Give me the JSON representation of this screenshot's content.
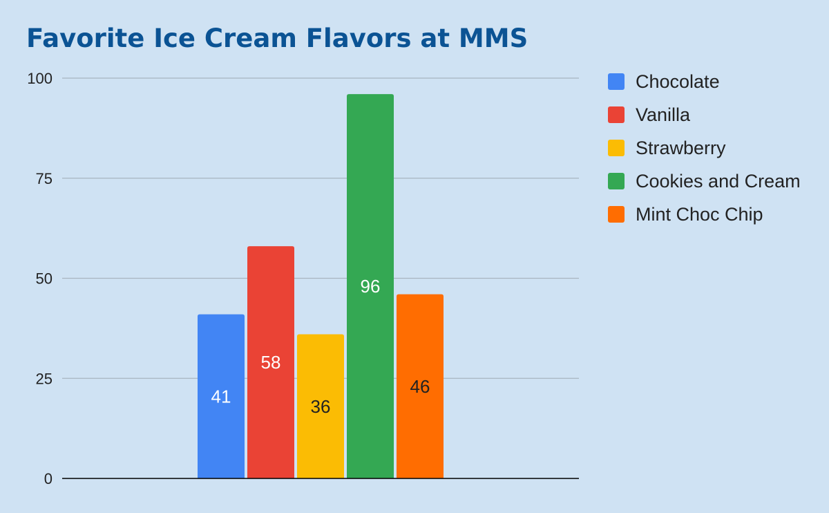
{
  "chart_data": {
    "type": "bar",
    "title": "Favorite Ice Cream Flavors at MMS",
    "xlabel": "",
    "ylabel": "",
    "ylim": [
      0,
      100
    ],
    "yticks": [
      "0",
      "25",
      "50",
      "75",
      "100"
    ],
    "grid": true,
    "legend_position": "right",
    "series": [
      {
        "name": "Chocolate",
        "value": 41,
        "label": "41",
        "color": "#4285f4",
        "label_color": "#ffffff"
      },
      {
        "name": "Vanilla",
        "value": 58,
        "label": "58",
        "color": "#ea4335",
        "label_color": "#ffffff"
      },
      {
        "name": "Strawberry",
        "value": 36,
        "label": "36",
        "color": "#fbbc04",
        "label_color": "#222222"
      },
      {
        "name": "Cookies and Cream",
        "value": 96,
        "label": "96",
        "color": "#34a853",
        "label_color": "#ffffff"
      },
      {
        "name": "Mint Choc Chip",
        "value": 46,
        "label": "46",
        "color": "#ff6d01",
        "label_color": "#222222"
      }
    ]
  }
}
